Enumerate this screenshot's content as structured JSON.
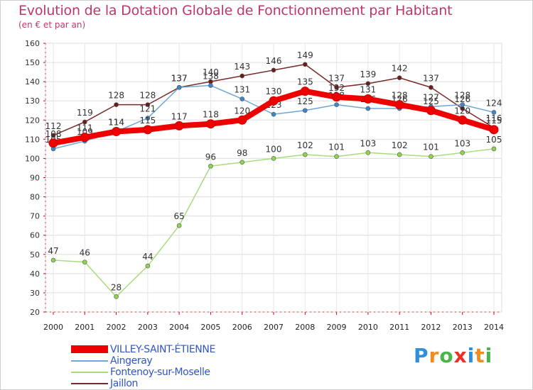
{
  "chart_data": {
    "type": "line",
    "title": "Evolution de la Dotation Globale de Fonctionnement par Habitant",
    "subtitle": "(en € et par an)",
    "x": [
      2000,
      2001,
      2002,
      2003,
      2004,
      2005,
      2006,
      2007,
      2008,
      2009,
      2010,
      2011,
      2012,
      2013,
      2014
    ],
    "ylim": [
      20,
      160
    ],
    "yticks": [
      20,
      30,
      40,
      50,
      60,
      70,
      80,
      90,
      100,
      110,
      120,
      130,
      140,
      150,
      160
    ],
    "grid": true,
    "series": [
      {
        "name": "Jaillon",
        "color": "#7a2a2a",
        "marker": "#6b1d1d",
        "values": [
          112,
          119,
          128,
          128,
          137,
          140,
          143,
          146,
          149,
          137,
          139,
          142,
          137,
          126,
          116
        ]
      },
      {
        "name": "Aingeray",
        "color": "#6ea6d6",
        "marker": "#3f86c9",
        "values": [
          105,
          109,
          114,
          121,
          137,
          138,
          131,
          123,
          125,
          128,
          126,
          126,
          127,
          128,
          124
        ]
      },
      {
        "name": "Fontenoy-sur-Moselle",
        "color": "#a8dc7a",
        "marker": "#8fd44f",
        "values": [
          47,
          46,
          28,
          44,
          65,
          96,
          98,
          100,
          102,
          101,
          103,
          102,
          101,
          103,
          105
        ]
      },
      {
        "name": "VILLEY-SAINT-ÉTIENNE",
        "color": "#ee0000",
        "marker": "#ee0000",
        "values": [
          108,
          111,
          114,
          115,
          117,
          118,
          120,
          130,
          135,
          132,
          131,
          128,
          125,
          120,
          115
        ]
      }
    ],
    "legend": [
      "VILLEY-SAINT-ÉTIENNE",
      "Aingeray",
      "Fontenoy-sur-Moselle",
      "Jaillon"
    ],
    "legend_position": "bottom-left"
  },
  "brand": {
    "letters": [
      "P",
      "r",
      "o",
      "x",
      "i",
      "t",
      "i"
    ],
    "colors": [
      "#2f8fd8",
      "#f28b1e",
      "#48b648",
      "#e8332a",
      "#2f8fd8",
      "#f28b1e",
      "#48b648"
    ]
  }
}
